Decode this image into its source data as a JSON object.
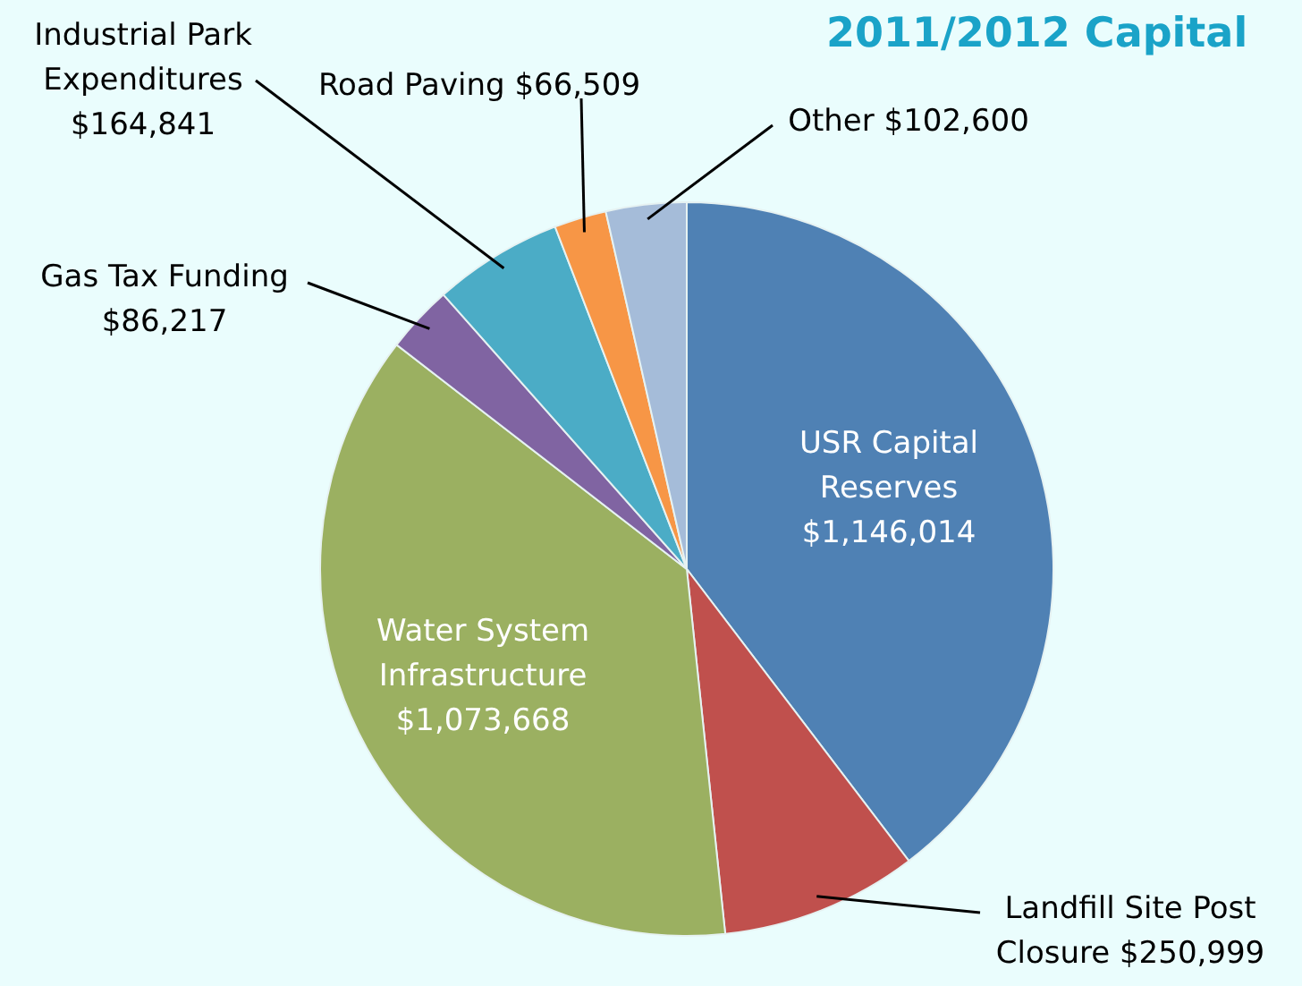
{
  "chart_data": {
    "type": "pie",
    "title": "2011/2012 Capital",
    "categories": [
      "USR Capital Reserves",
      "Landfill Site Post Closure",
      "Water System Infrastructure",
      "Gas Tax Funding",
      "Industrial Park Expenditures",
      "Road Paving",
      "Other"
    ],
    "values": [
      1146014,
      250999,
      1073668,
      86217,
      164841,
      66509,
      102600
    ],
    "value_labels": [
      "$1,146,014",
      "$250,999",
      "$1,073,668",
      "$86,217",
      "$164,841",
      "$66,509",
      "$102,600"
    ],
    "colors": [
      "#4f81b4",
      "#c0504d",
      "#9bb061",
      "#8064a2",
      "#4bacc6",
      "#f79646",
      "#a5bcd9"
    ]
  }
}
